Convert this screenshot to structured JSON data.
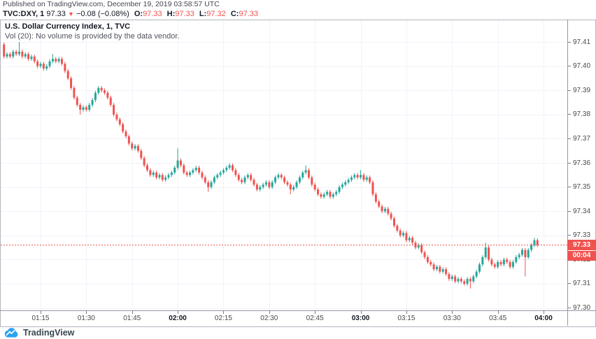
{
  "page": {
    "published_line": "Published on TradingView.com, December 19, 2019 03:58:57 UTC"
  },
  "ticker_row": {
    "symbol_interval": "TVC:DXY, 1",
    "last_price": "97.33",
    "direction_icon": "▼",
    "change": "−0.08 (−0.08%)",
    "open_label": "O:",
    "open": "97.33",
    "high_label": "H:",
    "high": "97.33",
    "low_label": "L:",
    "low": "97.32",
    "close_label": "C:",
    "close": "97.33"
  },
  "legend": {
    "title": "U.S. Dollar Currency Index, 1, TVC",
    "volume_note": "Vol (20): No volume is provided by the data vendor."
  },
  "price_axis": {
    "current_price_label": "97.33",
    "countdown": "00:04"
  },
  "footer": {
    "brand": "TradingView"
  },
  "colors": {
    "up": "#26a69a",
    "down": "#ef5350",
    "accent_red": "#ef5350",
    "grid": "#f0f3fa",
    "frame": "#b2b5be",
    "axis_text": "#4a4a4a",
    "brand_blue": "#2ba3f1"
  },
  "chart_data": {
    "type": "candlestick",
    "title": "U.S. Dollar Currency Index, 1 minute, TVC",
    "start_time": "01:03",
    "interval_minutes": 1,
    "y_ticks": [
      "97.41",
      "97.40",
      "97.39",
      "97.38",
      "97.37",
      "97.36",
      "97.35",
      "97.34",
      "97.33",
      "97.32",
      "97.31",
      "97.30"
    ],
    "x_ticks": [
      {
        "label": "01:15",
        "bold": false
      },
      {
        "label": "01:30",
        "bold": false
      },
      {
        "label": "01:45",
        "bold": false
      },
      {
        "label": "02:00",
        "bold": true
      },
      {
        "label": "02:15",
        "bold": false
      },
      {
        "label": "02:30",
        "bold": false
      },
      {
        "label": "02:45",
        "bold": false
      },
      {
        "label": "03:00",
        "bold": true
      },
      {
        "label": "03:15",
        "bold": false
      },
      {
        "label": "03:30",
        "bold": false
      },
      {
        "label": "03:45",
        "bold": false
      },
      {
        "label": "04:00",
        "bold": true
      }
    ],
    "y_range": [
      97.299,
      97.419
    ],
    "last_price": 97.326,
    "first_open": 97.409,
    "default_wick": 0.0008,
    "closes": [
      97.404,
      97.405,
      97.404,
      97.406,
      97.405,
      97.406,
      97.404,
      97.405,
      97.403,
      97.404,
      97.402,
      97.4,
      97.401,
      97.399,
      97.4,
      97.402,
      97.403,
      97.402,
      97.403,
      97.401,
      97.398,
      97.395,
      97.391,
      97.387,
      97.384,
      97.382,
      97.383,
      97.382,
      97.384,
      97.386,
      97.389,
      97.391,
      97.39,
      97.389,
      97.387,
      97.384,
      97.38,
      97.378,
      97.376,
      97.373,
      97.371,
      97.368,
      97.366,
      97.367,
      97.365,
      97.362,
      97.359,
      97.357,
      97.355,
      97.356,
      97.354,
      97.355,
      97.353,
      97.354,
      97.355,
      97.356,
      97.358,
      97.361,
      97.359,
      97.356,
      97.355,
      97.356,
      97.357,
      97.358,
      97.356,
      97.354,
      97.352,
      97.35,
      97.352,
      97.354,
      97.355,
      97.356,
      97.357,
      97.358,
      97.359,
      97.357,
      97.355,
      97.353,
      97.352,
      97.354,
      97.355,
      97.353,
      97.351,
      97.349,
      97.35,
      97.351,
      97.352,
      97.35,
      97.352,
      97.354,
      97.355,
      97.354,
      97.352,
      97.351,
      97.349,
      97.35,
      97.352,
      97.354,
      97.356,
      97.357,
      97.354,
      97.351,
      97.349,
      97.347,
      97.346,
      97.347,
      97.348,
      97.346,
      97.347,
      97.348,
      97.35,
      97.351,
      97.352,
      97.353,
      97.354,
      97.355,
      97.354,
      97.355,
      97.353,
      97.354,
      97.352,
      97.347,
      97.344,
      97.342,
      97.34,
      97.341,
      97.339,
      97.337,
      97.334,
      97.332,
      97.33,
      97.331,
      97.328,
      97.329,
      97.327,
      97.325,
      97.326,
      97.323,
      97.321,
      97.319,
      97.318,
      97.316,
      97.317,
      97.315,
      97.316,
      97.314,
      97.312,
      97.313,
      97.311,
      97.312,
      97.311,
      97.31,
      97.312,
      97.311,
      97.313,
      97.315,
      97.318,
      97.321,
      97.325,
      97.32,
      97.318,
      97.317,
      97.319,
      97.318,
      97.32,
      97.319,
      97.317,
      97.319,
      97.321,
      97.322,
      97.324,
      97.321,
      97.324,
      97.326,
      97.328,
      97.326
    ],
    "wick_overrides": {
      "5": {
        "high": 97.41
      },
      "16": {
        "high": 97.405
      },
      "25": {
        "low": 97.38
      },
      "57": {
        "high": 97.366
      },
      "67": {
        "low": 97.348
      },
      "94": {
        "low": 97.347
      },
      "99": {
        "high": 97.359
      },
      "117": {
        "high": 97.357
      },
      "153": {
        "low": 97.308
      },
      "158": {
        "high": 97.327
      },
      "171": {
        "low": 97.313
      },
      "174": {
        "high": 97.329
      }
    }
  }
}
